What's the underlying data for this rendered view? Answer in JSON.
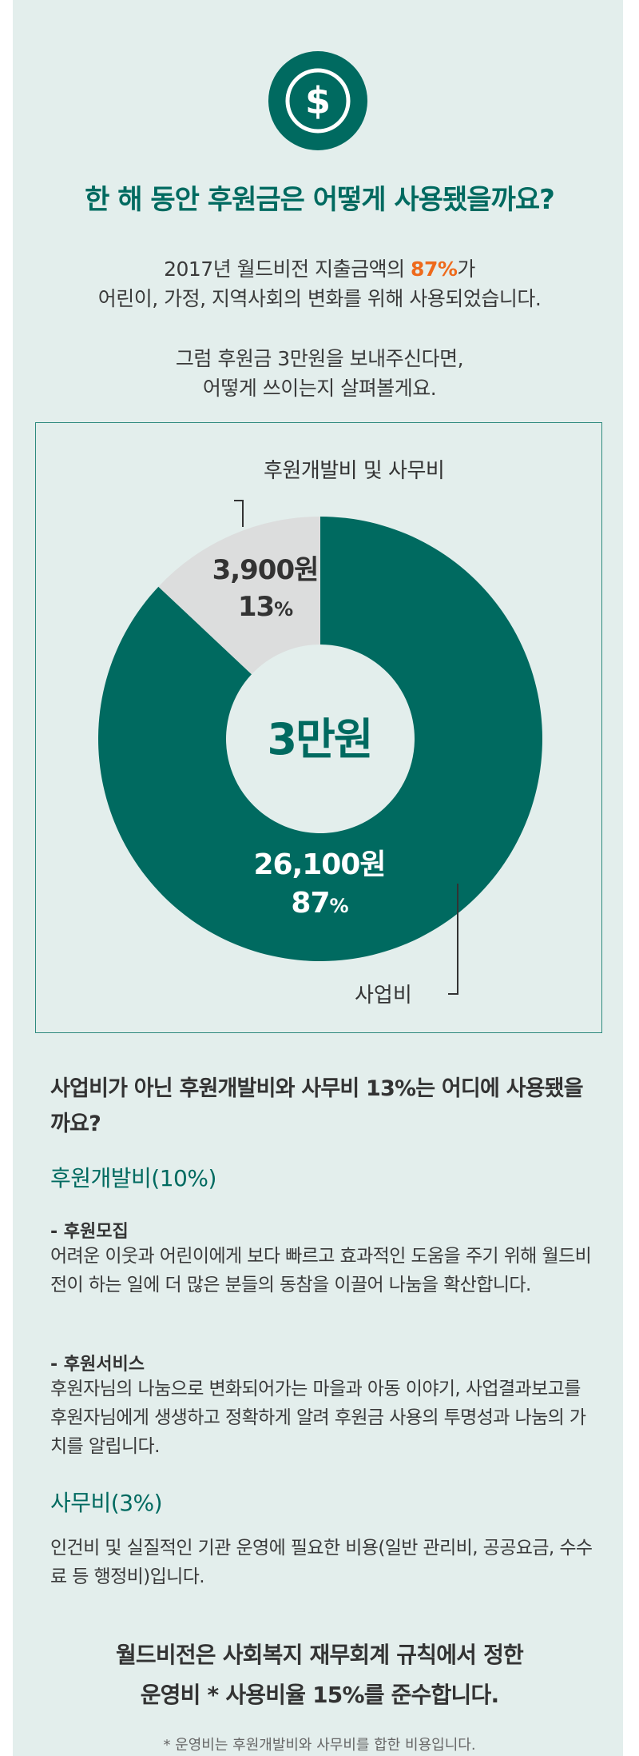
{
  "colors": {
    "accent": "#006a60",
    "highlight": "#ee6a1c",
    "panel": "#e3eeec",
    "slice_light": "#dcdddd"
  },
  "icon": "dollar-coin-icon",
  "title": "한 해 동안 후원금은 어떻게 사용됐을까요?",
  "intro": {
    "line1_pre": "2017년 월드비전 지출금액의 ",
    "line1_highlight": "87%",
    "line1_post": "가",
    "line2": "어린이, 가정, 지역사회의 변화를 위해 사용되었습니다.",
    "line3": "그럼 후원금 3만원을 보내주신다면,",
    "line4": "어떻게 쓰이는지 살펴볼게요."
  },
  "chart_data": {
    "type": "pie",
    "center_label": "3만원",
    "slices": [
      {
        "label": "사업비",
        "amount": "26,100원",
        "percent": 87
      },
      {
        "label": "후원개발비 및 사무비",
        "amount": "3,900원",
        "percent": 13
      }
    ]
  },
  "chart_labels": {
    "small_amount": "3,900원",
    "small_pct": "13",
    "big_amount": "26,100원",
    "big_pct": "87",
    "pct_sign": "%"
  },
  "question": "사업비가 아닌 후원개발비와 사무비 13%는 어디에 사용됐을까요?",
  "sections": {
    "dev_title": "후원개발비(10%)",
    "recruit_head": "- 후원모집",
    "recruit_body": "어려운 이웃과 어린이에게 보다 빠르고 효과적인 도움을 주기 위해 월드비전이 하는 일에 더 많은 분들의 동참을 이끌어 나눔을 확산합니다.",
    "service_head": "- 후원서비스",
    "service_body": "후원자님의 나눔으로 변화되어가는 마을과 아동 이야기, 사업결과보고를 후원자님에게 생생하고 정확하게 알려 후원금 사용의 투명성과 나눔의 가치를 알립니다.",
    "office_title": "사무비(3%)",
    "office_body": "인건비 및 실질적인 기관 운영에 필요한 비용(일반 관리비, 공공요금, 수수료 등 행정비)입니다."
  },
  "footer": {
    "line1": "월드비전은 사회복지 재무회계 규칙에서 정한",
    "line2": "운영비 * 사용비율 15%를 준수합니다.",
    "note": "* 운영비는 후원개발비와 사무비를 합한 비용입니다."
  }
}
